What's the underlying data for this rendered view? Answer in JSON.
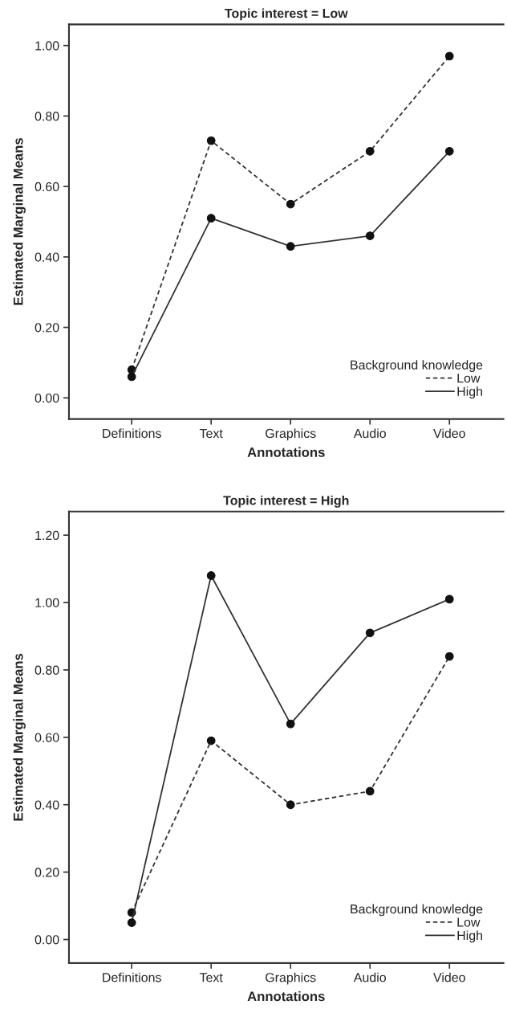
{
  "chart_data": [
    {
      "type": "line",
      "title": "Topic interest = Low",
      "xlabel": "Annotations",
      "ylabel": "Estimated Marginal Means",
      "legend_title": "Background knowledge",
      "categories": [
        "Definitions",
        "Text",
        "Graphics",
        "Audio",
        "Video"
      ],
      "series": [
        {
          "name": "Low",
          "color": "#333333",
          "line_style": "dashed",
          "values": [
            0.08,
            0.73,
            0.55,
            0.7,
            0.97
          ]
        },
        {
          "name": "High",
          "color": "#333333",
          "line_style": "solid",
          "values": [
            0.06,
            0.51,
            0.43,
            0.46,
            0.7
          ]
        }
      ],
      "ylim": [
        -0.06,
        1.06
      ],
      "yticks": [
        {
          "value": 0,
          "label": "0.00"
        },
        {
          "value": 0.2,
          "label": "0.20"
        },
        {
          "value": 0.4,
          "label": "0.40"
        },
        {
          "value": 0.6,
          "label": "0.60"
        },
        {
          "value": 0.8,
          "label": "0.80"
        },
        {
          "value": 1.0,
          "label": "1.00"
        }
      ],
      "marker": "circle",
      "grid": false,
      "legend": "bottom right"
    },
    {
      "type": "line",
      "title": "Topic interest = High",
      "xlabel": "Annotations",
      "ylabel": "Estimated Marginal Means",
      "legend_title": "Background knowledge",
      "categories": [
        "Definitions",
        "Text",
        "Graphics",
        "Audio",
        "Video"
      ],
      "series": [
        {
          "name": "Low",
          "color": "#333333",
          "line_style": "dashed",
          "values": [
            0.08,
            0.59,
            0.4,
            0.44,
            0.84
          ]
        },
        {
          "name": "High",
          "color": "#333333",
          "line_style": "solid",
          "values": [
            0.05,
            1.08,
            0.64,
            0.91,
            1.01
          ]
        }
      ],
      "ylim": [
        -0.07,
        1.27
      ],
      "yticks": [
        {
          "value": 0,
          "label": "0.00"
        },
        {
          "value": 0.2,
          "label": "0.20"
        },
        {
          "value": 0.4,
          "label": "0.40"
        },
        {
          "value": 0.6,
          "label": "0.60"
        },
        {
          "value": 0.8,
          "label": "0.80"
        },
        {
          "value": 1.0,
          "label": "1.00"
        },
        {
          "value": 1.2,
          "label": "1.20"
        }
      ],
      "marker": "circle",
      "grid": false,
      "legend": "bottom right"
    }
  ]
}
